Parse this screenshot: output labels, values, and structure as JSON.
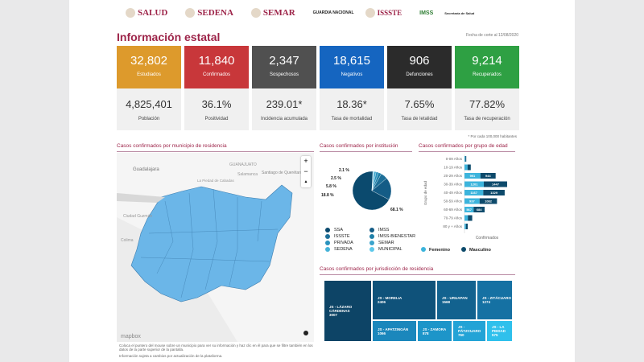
{
  "logos": [
    "SALUD",
    "SEDENA",
    "SEMAR",
    "GUARDIA NACIONAL",
    "ISSSTE",
    "IMSS",
    "Secretaría de Salud"
  ],
  "title": "Información estatal",
  "date": "Fecha de corte al 12/08/2020",
  "cards": [
    {
      "value": "32,802",
      "label": "Estudiados",
      "color": "#dd9a2c",
      "sub_value": "4,825,401",
      "sub_label": "Población"
    },
    {
      "value": "11,840",
      "label": "Confirmados",
      "color": "#c8373a",
      "sub_value": "36.1%",
      "sub_label": "Positividad"
    },
    {
      "value": "2,347",
      "label": "Sospechosos",
      "color": "#505050",
      "sub_value": "239.01*",
      "sub_label": "Incidencia acumulada"
    },
    {
      "value": "18,615",
      "label": "Negativos",
      "color": "#1565c0",
      "sub_value": "18.36*",
      "sub_label": "Tasa de mortalidad"
    },
    {
      "value": "906",
      "label": "Defunciones",
      "color": "#2b2b2b",
      "sub_value": "7.65%",
      "sub_label": "Tasa de letalidad"
    },
    {
      "value": "9,214",
      "label": "Recuperados",
      "color": "#2ea043",
      "sub_value": "77.82%",
      "sub_label": "Tasa de recuperación"
    }
  ],
  "note": "* Por cada 100,000 habitantes",
  "map": {
    "title": "Casos confirmados por municipio de residencia",
    "labels": [
      "Guadalajara",
      "GUANAJUATO",
      "Salamanca",
      "Santiago de Querétaro",
      "La Piedad de Cabadas",
      "Ciudad Guzmán",
      "Colima"
    ],
    "brand": "mapbox",
    "zoom_in": "+",
    "zoom_out": "−",
    "compass": "▲",
    "fill": "#6bb6e8"
  },
  "footnotes": [
    "Coloca el puntero del mouse sobre un municipio para ver su información y haz clic en él para que se filtre también en los datos de la parte superior de la pantalla.",
    "Información sujeta a cambios por actualización de la plataforma."
  ],
  "institution": {
    "title": "Casos confirmados por institución",
    "chart_data": {
      "type": "pie",
      "slices": [
        {
          "label": "SSA",
          "value": 68.1,
          "color": "#0b4a6e"
        },
        {
          "label": "IMSS",
          "value": 18.8,
          "color": "#145c86"
        },
        {
          "label": "ISSSTE",
          "value": 5.8,
          "color": "#1d6f98"
        },
        {
          "label": "IMSS-BIENESTAR",
          "value": 2.5,
          "color": "#1e7fa8"
        },
        {
          "label": "PRIVADA",
          "value": 2.1,
          "color": "#2a92bd"
        },
        {
          "label": "SEMAR",
          "value": 1.5,
          "color": "#3aa3cc"
        },
        {
          "label": "SEDENA",
          "value": 0.7,
          "color": "#45b2d8"
        },
        {
          "label": "MUNICIPAL",
          "value": 0.5,
          "color": "#5cc8ea"
        }
      ],
      "data_labels": [
        "68.1 %",
        "18.8 %",
        "5.8 %",
        "2.5 %",
        "2.1 %"
      ]
    },
    "legend": [
      "SSA",
      "IMSS",
      "ISSSTE",
      "IMSS-BIENESTAR",
      "PRIVADA",
      "SEMAR",
      "SEDENA",
      "MUNICIPAL"
    ]
  },
  "age": {
    "title": "Casos confirmados por grupo de edad",
    "chart_data": {
      "type": "bar",
      "orientation": "horizontal",
      "stacked": true,
      "ylabel": "Grupo de edad",
      "xlabel": "Confirmados",
      "categories": [
        "0-09 Años",
        "10-19 Años",
        "20-29 Años",
        "30-39 Años",
        "40-49 Años",
        "50-59 Años",
        "60-69 Años",
        "70-79 Años",
        "80 y + Años"
      ],
      "series": [
        {
          "name": "Femenino",
          "color": "#3cb4dc",
          "values": [
            60,
            190,
            991,
            1201,
            1167,
            937,
            567,
            210,
            90
          ]
        },
        {
          "name": "Masculino",
          "color": "#0d4a6b",
          "values": [
            50,
            200,
            944,
            1447,
            1329,
            1082,
            684,
            270,
            110
          ]
        }
      ]
    }
  },
  "jurisdiction": {
    "title": "Casos confirmados por jurisdicción de residencia",
    "chart_data": {
      "type": "treemap",
      "items": [
        {
          "label": "JS - LÁZARO CÁRDENAS",
          "value": 3007,
          "color": "#0d4466"
        },
        {
          "label": "JS - MORELIA",
          "value": 2406,
          "color": "#0f527a"
        },
        {
          "label": "JS - URUAPAN",
          "value": 1568,
          "color": "#12628f"
        },
        {
          "label": "JS - ZITÁCUARO",
          "value": 1274,
          "color": "#1571a3"
        },
        {
          "label": "JS - APATZINGÁN",
          "value": 1066,
          "color": "#1b87bc"
        },
        {
          "label": "JS - ZAMORA",
          "value": 878,
          "color": "#1d95c9"
        },
        {
          "label": "JS - PÁTZCUARO",
          "value": 760,
          "color": "#23a3d6"
        },
        {
          "label": "JS - LA PIEDAD",
          "value": 575,
          "color": "#2fc0ec"
        }
      ]
    }
  }
}
